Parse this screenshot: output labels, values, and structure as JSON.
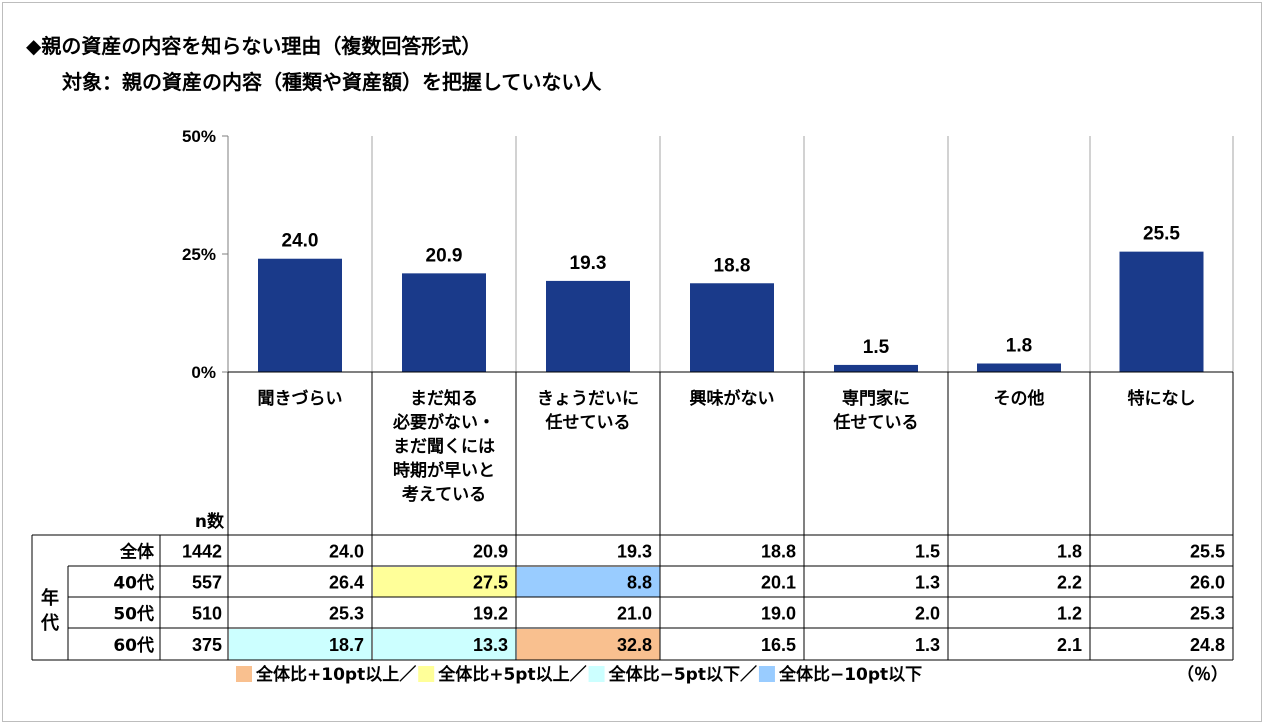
{
  "title": "◆親の資産の内容を知らない理由（複数回答形式）",
  "subtitle": "対象：親の資産の内容（種類や資産額）を把握していない人",
  "chart_data": {
    "type": "bar",
    "ylim": [
      0,
      50
    ],
    "y_ticks": [
      "50%",
      "25%",
      "0%"
    ],
    "categories": [
      [
        "聞きづらい"
      ],
      [
        "まだ知る",
        "必要がない・",
        "まだ聞くには",
        "時期が早いと",
        "考えている"
      ],
      [
        "きょうだいに",
        "任せている"
      ],
      [
        "興味がない"
      ],
      [
        "専門家に",
        "任せている"
      ],
      [
        "その他"
      ],
      [
        "特になし"
      ]
    ],
    "values": [
      24.0,
      20.9,
      19.3,
      18.8,
      1.5,
      1.8,
      25.5
    ],
    "value_labels": [
      "24.0",
      "20.9",
      "19.3",
      "18.8",
      "1.5",
      "1.8",
      "25.5"
    ],
    "bar_color": "#1a3a8a",
    "grid": "vertical separators"
  },
  "table": {
    "n_header": "n数",
    "age_group_label": "年代",
    "rows": [
      {
        "label": "全体",
        "n": "1442",
        "values": [
          "24.0",
          "20.9",
          "19.3",
          "18.8",
          "1.5",
          "1.8",
          "25.5"
        ],
        "highlight": [
          null,
          null,
          null,
          null,
          null,
          null,
          null
        ]
      },
      {
        "label": "40代",
        "n": "557",
        "values": [
          "26.4",
          "27.5",
          "8.8",
          "20.1",
          "1.3",
          "2.2",
          "26.0"
        ],
        "highlight": [
          null,
          "plus5",
          "minus10",
          null,
          null,
          null,
          null
        ]
      },
      {
        "label": "50代",
        "n": "510",
        "values": [
          "25.3",
          "19.2",
          "21.0",
          "19.0",
          "2.0",
          "1.2",
          "25.3"
        ],
        "highlight": [
          null,
          null,
          null,
          null,
          null,
          null,
          null
        ]
      },
      {
        "label": "60代",
        "n": "375",
        "values": [
          "18.7",
          "13.3",
          "32.8",
          "16.5",
          "1.3",
          "2.1",
          "24.8"
        ],
        "highlight": [
          "minus5",
          "minus5",
          "plus10",
          null,
          null,
          null,
          null
        ]
      }
    ]
  },
  "legend": [
    {
      "key": "plus10",
      "color": "#f9c08f",
      "label": "全体比+10pt以上／"
    },
    {
      "key": "plus5",
      "color": "#ffff99",
      "label": "全体比+5pt以上／"
    },
    {
      "key": "minus5",
      "color": "#ccffff",
      "label": "全体比−5pt以下／"
    },
    {
      "key": "minus10",
      "color": "#99ccff",
      "label": "全体比−10pt以下"
    }
  ],
  "unit": "（％）"
}
